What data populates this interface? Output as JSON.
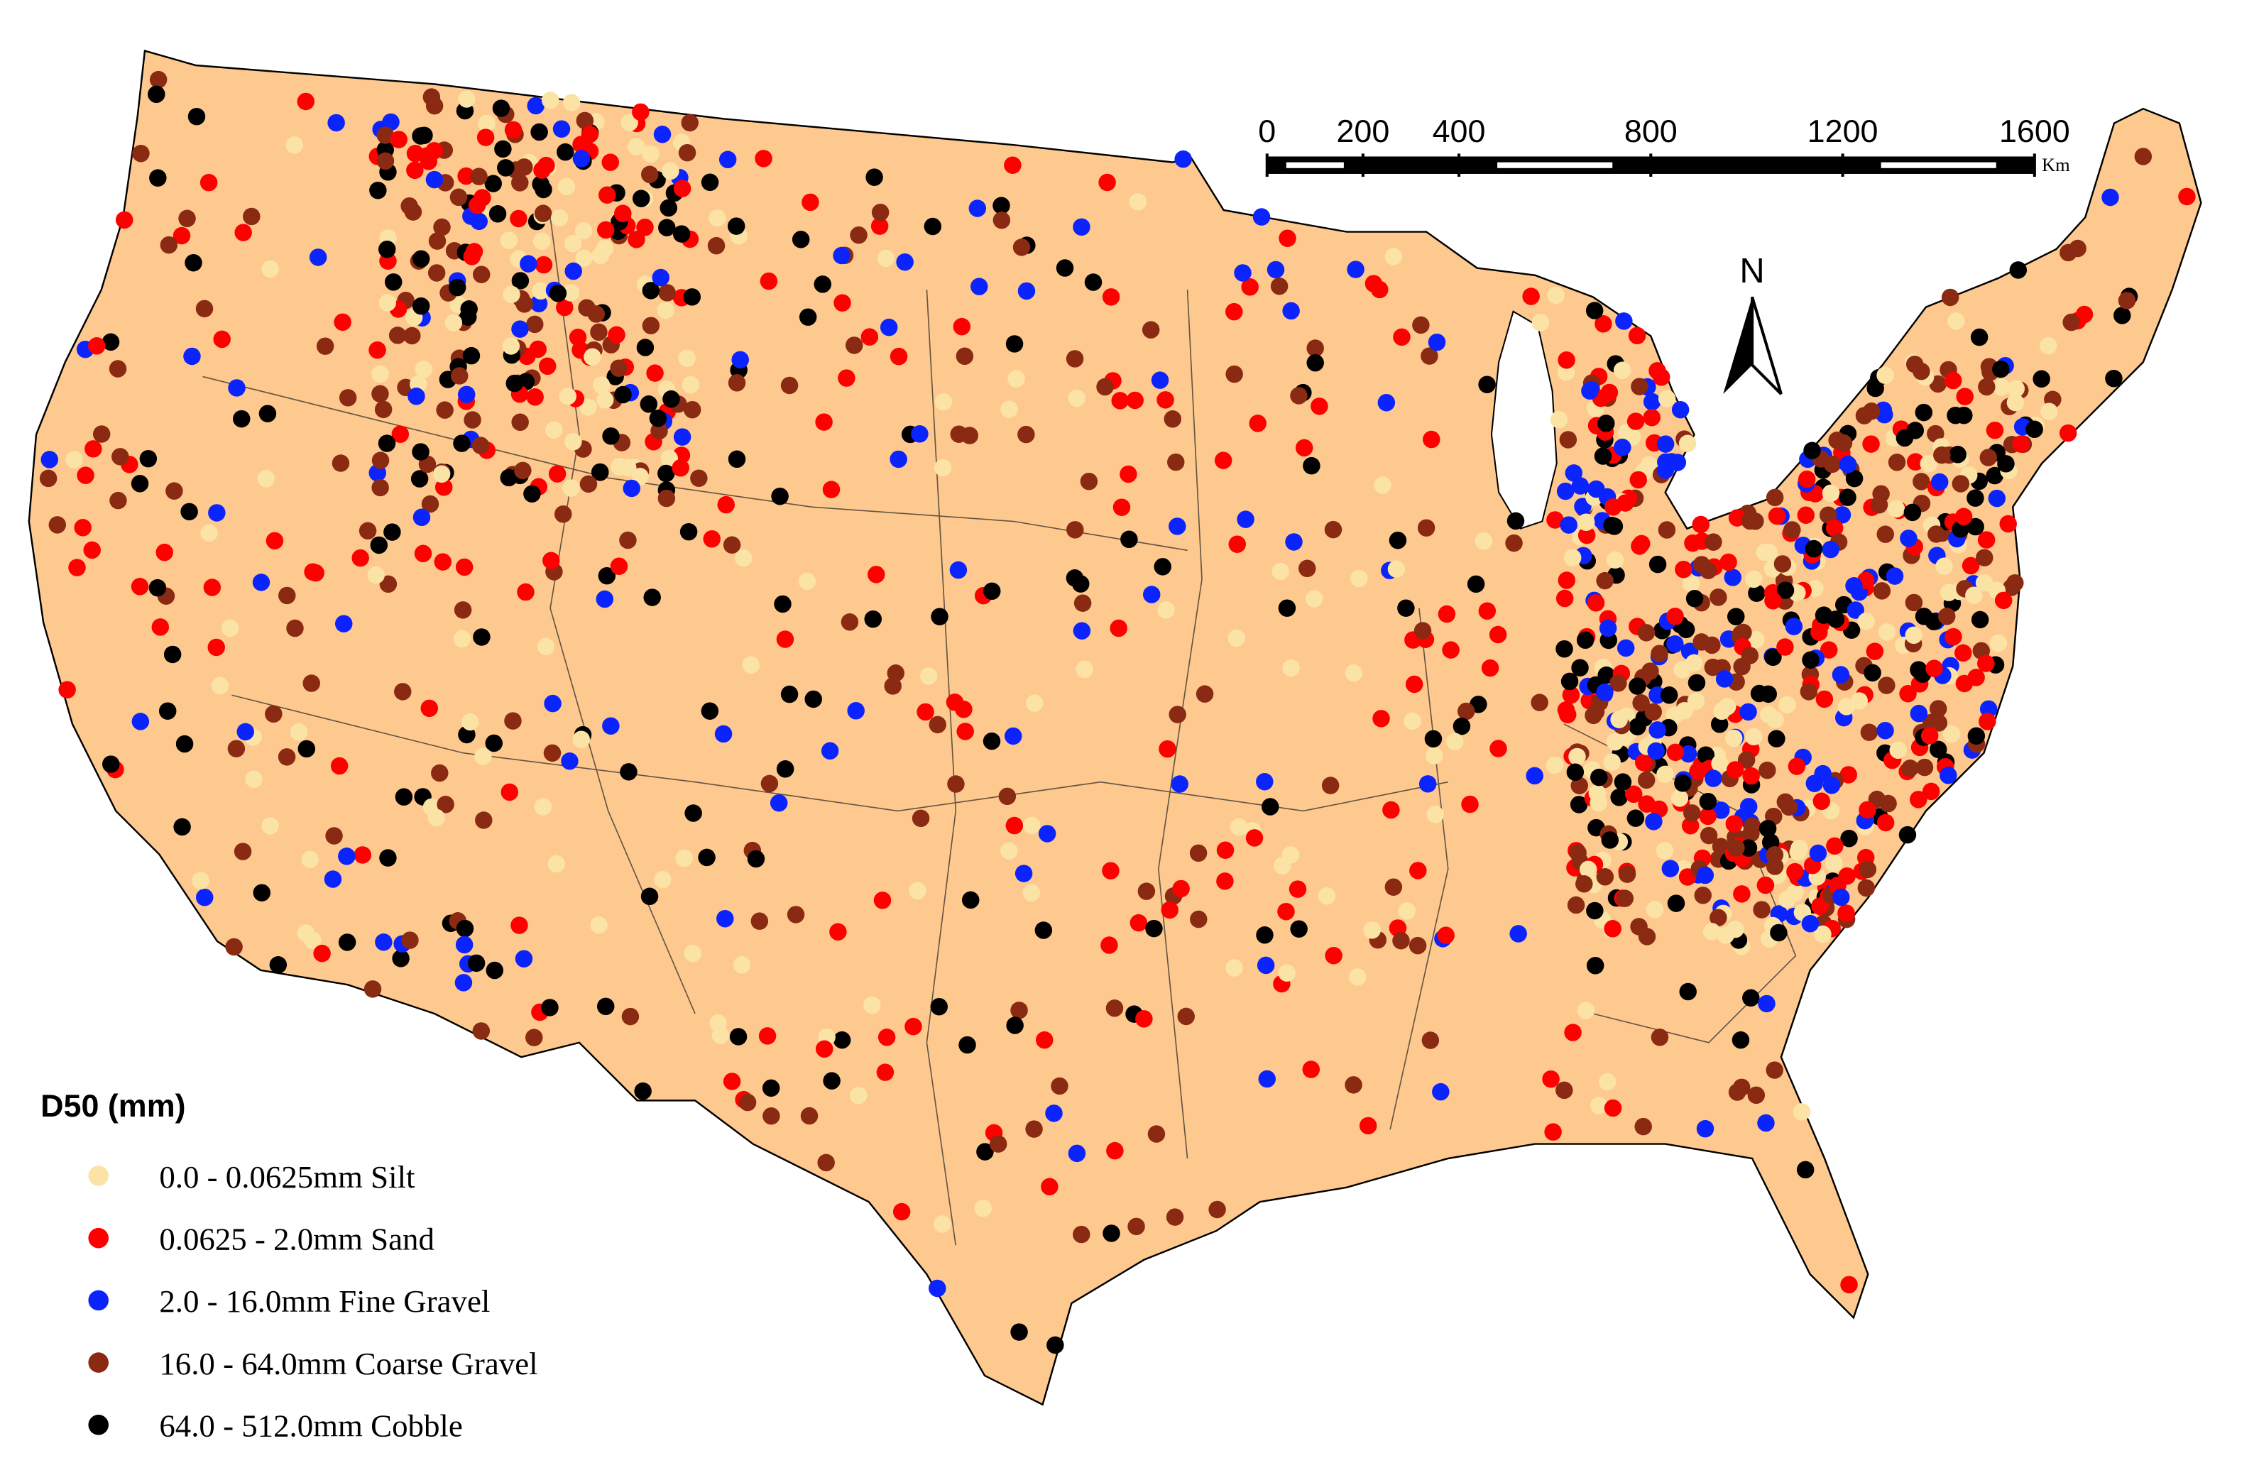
{
  "map": {
    "legend": {
      "title": "D50 (mm)",
      "items": [
        {
          "label": "0.0 - 0.0625mm Silt",
          "color": "#fbe3a6"
        },
        {
          "label": "0.0625 - 2.0mm Sand",
          "color": "#ff0000"
        },
        {
          "label": "2.0 - 16.0mm Fine Gravel",
          "color": "#0a23ff"
        },
        {
          "label": "16.0 - 64.0mm Coarse Gravel",
          "color": "#8b2a12"
        },
        {
          "label": "64.0 - 512.0mm Cobble",
          "color": "#000000"
        }
      ]
    },
    "scale_bar": {
      "ticks": [
        0,
        200,
        400,
        800,
        1200,
        1600
      ],
      "unit": "Km"
    },
    "north_label": "N"
  }
}
